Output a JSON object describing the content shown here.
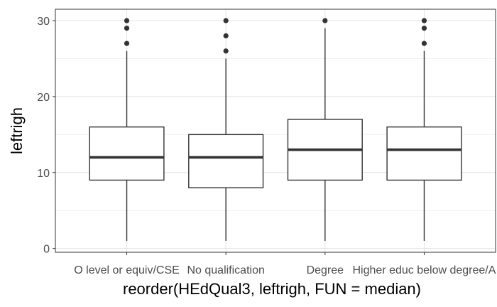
{
  "chart_data": {
    "type": "box",
    "xlabel": "reorder(HEdQual3, leftrigh, FUN = median)",
    "ylabel": "leftrigh",
    "ylim": [
      -0.5,
      31.5
    ],
    "yticks": [
      0,
      10,
      20,
      30
    ],
    "grid": true,
    "categories": [
      "O level or equiv/CSE",
      "No qualification",
      "Degree",
      "Higher educ below degree/A"
    ],
    "boxes": [
      {
        "category": "O level or equiv/CSE",
        "min": 1,
        "q1": 9,
        "median": 12,
        "q3": 16,
        "max": 26,
        "outliers": [
          27,
          29,
          30
        ]
      },
      {
        "category": "No qualification",
        "min": 1,
        "q1": 8,
        "median": 12,
        "q3": 15,
        "max": 25,
        "outliers": [
          26,
          28,
          30
        ]
      },
      {
        "category": "Degree",
        "min": 1,
        "q1": 9,
        "median": 13,
        "q3": 17,
        "max": 29,
        "outliers": [
          30
        ]
      },
      {
        "category": "Higher educ below degree/A",
        "min": 1,
        "q1": 9,
        "median": 13,
        "q3": 16,
        "max": 26,
        "outliers": [
          27,
          29,
          30
        ]
      }
    ]
  }
}
